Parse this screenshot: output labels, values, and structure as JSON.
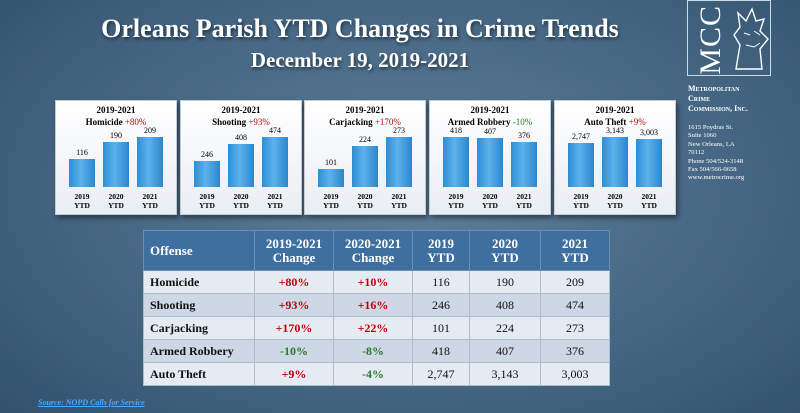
{
  "title": "Orleans Parish YTD Changes in Crime Trends",
  "subtitle": "December 19, 2019-2021",
  "logo": {
    "mark": "MCC",
    "name_lines": [
      "Metropolitan",
      "Crime",
      "Commission, Inc."
    ],
    "address_lines": [
      "1615 Poydras St.",
      "Suite 1060",
      "New Orleans, LA",
      "70112",
      "Phone 504/524-3148",
      "Fax 504/566-0658",
      "www.metrocrime.org"
    ]
  },
  "chart_data": [
    {
      "type": "bar",
      "title": "2019-2021",
      "subtitle_label": "Homicide",
      "change": "+80%",
      "categories": [
        "2019\nYTD",
        "2020\nYTD",
        "2021\nYTD"
      ],
      "values": [
        116,
        190,
        209
      ],
      "labels": [
        "116",
        "190",
        "209"
      ]
    },
    {
      "type": "bar",
      "title": "2019-2021",
      "subtitle_label": "Shooting",
      "change": "+93%",
      "categories": [
        "2019\nYTD",
        "2020\nYTD",
        "2021\nYTD"
      ],
      "values": [
        246,
        408,
        474
      ],
      "labels": [
        "246",
        "408",
        "474"
      ]
    },
    {
      "type": "bar",
      "title": "2019-2021",
      "subtitle_label": "Carjacking",
      "change": "+170%",
      "categories": [
        "2019\nYTD",
        "2020\nYTD",
        "2021\nYTD"
      ],
      "values": [
        101,
        224,
        273
      ],
      "labels": [
        "101",
        "224",
        "273"
      ]
    },
    {
      "type": "bar",
      "title": "2019-2021",
      "subtitle_label": "Armed Robbery",
      "change": "-10%",
      "categories": [
        "2019\nYTD",
        "2020\nYTD",
        "2021\nYTD"
      ],
      "values": [
        418,
        407,
        376
      ],
      "labels": [
        "418",
        "407",
        "376"
      ]
    },
    {
      "type": "bar",
      "title": "2019-2021",
      "subtitle_label": "Auto Theft",
      "change": "+9%",
      "categories": [
        "2019\nYTD",
        "2020\nYTD",
        "2021\nYTD"
      ],
      "values": [
        2747,
        3143,
        3003
      ],
      "labels": [
        "2,747",
        "3,143",
        "3,003"
      ]
    }
  ],
  "table": {
    "headers": [
      "Offense",
      "2019-2021\nChange",
      "2020-2021\nChange",
      "2019\nYTD",
      "2020\nYTD",
      "2021\nYTD"
    ],
    "rows": [
      [
        "Homicide",
        "+80%",
        "+10%",
        "116",
        "190",
        "209"
      ],
      [
        "Shooting",
        "+93%",
        "+16%",
        "246",
        "408",
        "474"
      ],
      [
        "Carjacking",
        "+170%",
        "+22%",
        "101",
        "224",
        "273"
      ],
      [
        "Armed Robbery",
        "-10%",
        "-8%",
        "418",
        "407",
        "376"
      ],
      [
        "Auto Theft",
        "+9%",
        "-4%",
        "2,747",
        "3,143",
        "3,003"
      ]
    ]
  },
  "colors": {
    "increase": "#c00000",
    "decrease": "#2b7a2b",
    "bar": "#2a8fd6",
    "header": "#3f6f9e"
  },
  "source": "Source: NOPD Calls for Service"
}
